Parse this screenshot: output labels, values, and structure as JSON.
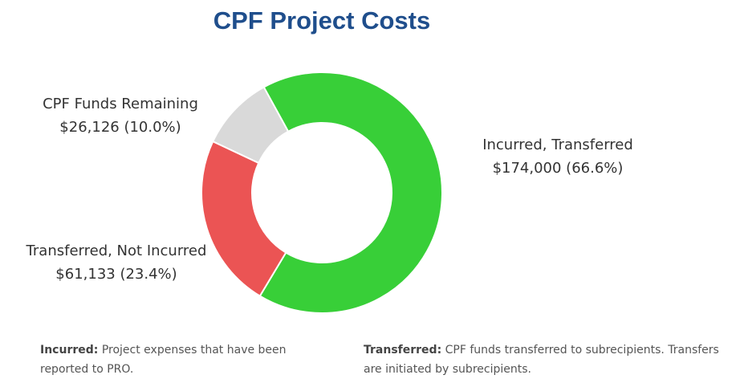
{
  "chart_data": {
    "type": "donut",
    "title": "CPF Project Costs",
    "categories": [
      "Incurred, Transferred",
      "Transferred, Not Incurred",
      "CPF Funds Remaining"
    ],
    "values": [
      174000,
      61133,
      26126
    ],
    "value_labels": [
      "$174,000 (66.6%)",
      "$61,133 (23.4%)",
      "$26,126 (10.0%)"
    ],
    "colors": [
      "#38cf38",
      "#eb5454",
      "#d9d9d9"
    ]
  },
  "notes": [
    {
      "term": "Incurred:",
      "text": "Project expenses that have been reported to PRO."
    },
    {
      "term": "Transferred:",
      "text": "CPF funds transferred to subrecipients. Transfers are initiated by subrecipients."
    }
  ]
}
